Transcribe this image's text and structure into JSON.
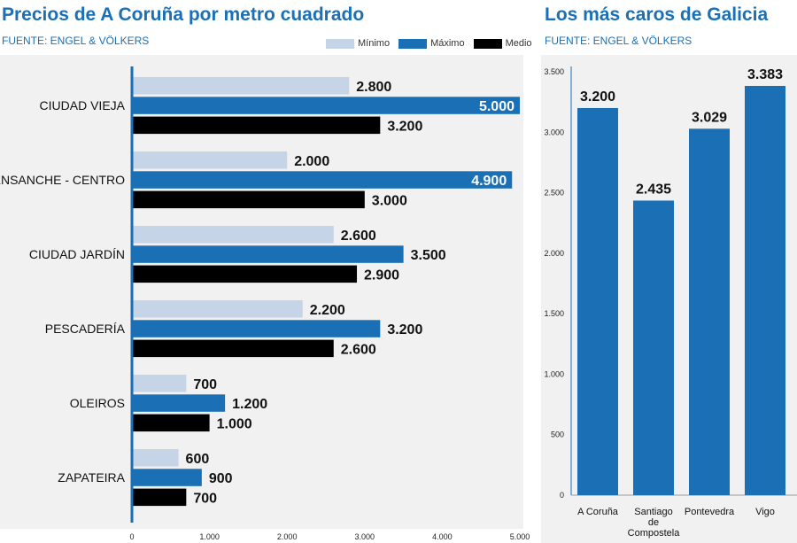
{
  "header_left": {
    "title": "Precios de A Coruña por metro cuadrado",
    "source": "FUENTE: ENGEL & VÖLKERS"
  },
  "header_right": {
    "title": "Los más caros de Galicia",
    "source": "FUENTE: ENGEL & VÖLKERS"
  },
  "legend": {
    "min_label": "Mínimo",
    "max_label": "Máximo",
    "avg_label": "Medio"
  },
  "colors": {
    "accent": "#1a6fb5",
    "min": "#c5d4e6",
    "max": "#1a6fb5",
    "avg": "#000000",
    "panel": "#f1f1f1"
  },
  "chart_data": [
    {
      "type": "bar",
      "orientation": "horizontal",
      "categories": [
        "CIUDAD VIEJA",
        "ENSANCHE - CENTRO",
        "CIUDAD JARDÍN",
        "PESCADERÍA",
        "OLEIROS",
        "ZAPATEIRA"
      ],
      "series": [
        {
          "name": "Mínimo",
          "values": [
            2800,
            2000,
            2600,
            2200,
            700,
            600
          ],
          "labels": [
            "2.800",
            "2.000",
            "2.600",
            "2.200",
            "700",
            "600"
          ]
        },
        {
          "name": "Máximo",
          "values": [
            5000,
            4900,
            3500,
            3200,
            1200,
            900
          ],
          "labels": [
            "5.000",
            "4.900",
            "3.500",
            "3.200",
            "1.200",
            "900"
          ]
        },
        {
          "name": "Medio",
          "values": [
            3200,
            3000,
            2900,
            2600,
            1000,
            700
          ],
          "labels": [
            "3.200",
            "3.000",
            "2.900",
            "2.600",
            "1.000",
            "700"
          ]
        }
      ],
      "xlim": [
        0,
        5000
      ],
      "xticks": [
        0,
        1000,
        2000,
        3000,
        4000,
        5000
      ],
      "xtick_labels": [
        "0",
        "1.000",
        "2.000",
        "3.000",
        "4.000",
        "5.000"
      ],
      "legend_position": "top-right",
      "grid": false
    },
    {
      "type": "bar",
      "orientation": "vertical",
      "categories": [
        "A Coruña",
        "Santiago de Compostela",
        "Pontevedra",
        "Vigo"
      ],
      "category_lines": [
        [
          "A Coruña"
        ],
        [
          "Santiago",
          "de",
          "Compostela"
        ],
        [
          "Pontevedra"
        ],
        [
          "Vigo"
        ]
      ],
      "values": [
        3200,
        2435,
        3029,
        3383
      ],
      "labels": [
        "3.200",
        "2.435",
        "3.029",
        "3.383"
      ],
      "ylim": [
        0,
        3500
      ],
      "yticks": [
        0,
        500,
        1000,
        1500,
        2000,
        2500,
        3000,
        3500
      ],
      "ytick_labels": [
        "0",
        "500",
        "1.000",
        "1.500",
        "2.000",
        "2.500",
        "3.000",
        "3.500"
      ],
      "grid": false
    }
  ]
}
